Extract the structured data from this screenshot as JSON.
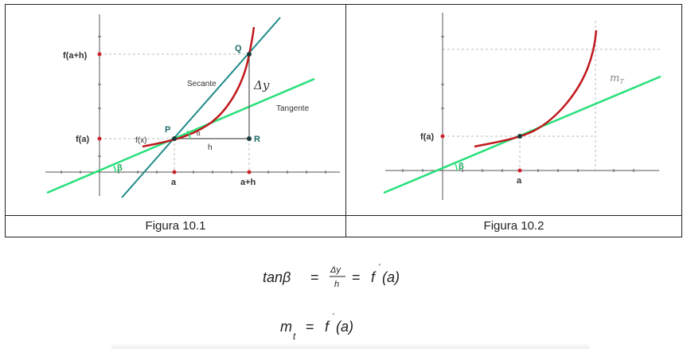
{
  "figures": [
    {
      "caption": "Figura 10.1",
      "labels": {
        "f_a_plus_h": "f(a+h)",
        "f_a": "f(a)",
        "a": "a",
        "a_plus_h": "a+h",
        "Q": "Q",
        "P": "P",
        "R": "R",
        "secante": "Secante",
        "tangente": "Tangente",
        "delta_y": "Δy",
        "fx": "f(x)",
        "h": "h",
        "alpha": "α",
        "beta": "β"
      }
    },
    {
      "caption": "Figura 10.2",
      "labels": {
        "f_a": "f(a)",
        "a": "a",
        "beta": "β",
        "mt": "m",
        "mt_sub": "T"
      }
    }
  ],
  "formulas": {
    "tan": {
      "lhs": "tanβ",
      "eq": "=",
      "num": "Δy",
      "den": "h",
      "rhs_f": "f",
      "prime": "'",
      "rhs_arg": "(a)"
    },
    "mt": {
      "m": "m",
      "sub": "t",
      "eq": "=",
      "rhs_f": "f",
      "prime": "'",
      "rhs_arg": "(a)"
    }
  },
  "colors": {
    "curve": "#c0181c",
    "tangent": "#27e07a",
    "secant": "#1f8a8a",
    "axis": "#555555",
    "point": "#d0202a"
  }
}
